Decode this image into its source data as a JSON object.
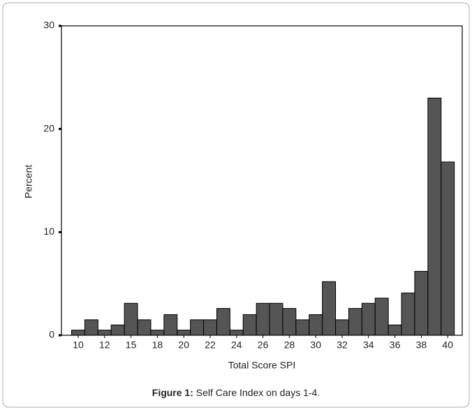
{
  "chart_data": {
    "type": "bar",
    "x_label": "Total Score SPI",
    "y_label": "Percent",
    "categories": [
      "10",
      null,
      "12",
      null,
      "15",
      null,
      "18",
      null,
      "20",
      null,
      "22",
      null,
      "24",
      null,
      "26",
      null,
      "28",
      null,
      "30",
      null,
      "32",
      null,
      "34",
      null,
      "36",
      null,
      "38",
      null,
      "40"
    ],
    "values": [
      0.5,
      1.5,
      0.5,
      1.0,
      3.1,
      1.5,
      0.5,
      2.0,
      0.5,
      1.5,
      1.5,
      2.6,
      0.5,
      2.0,
      3.1,
      3.1,
      2.6,
      1.5,
      2.0,
      5.2,
      1.5,
      2.6,
      3.1,
      3.6,
      1.0,
      4.1,
      6.2,
      23.0,
      16.8
    ],
    "color": "#555555",
    "ylim": [
      0,
      30
    ],
    "yticks": [
      0,
      10,
      20,
      30
    ],
    "grid": false
  },
  "caption": {
    "label": "Figure 1:",
    "text": "Self Care Index on days 1-4."
  }
}
